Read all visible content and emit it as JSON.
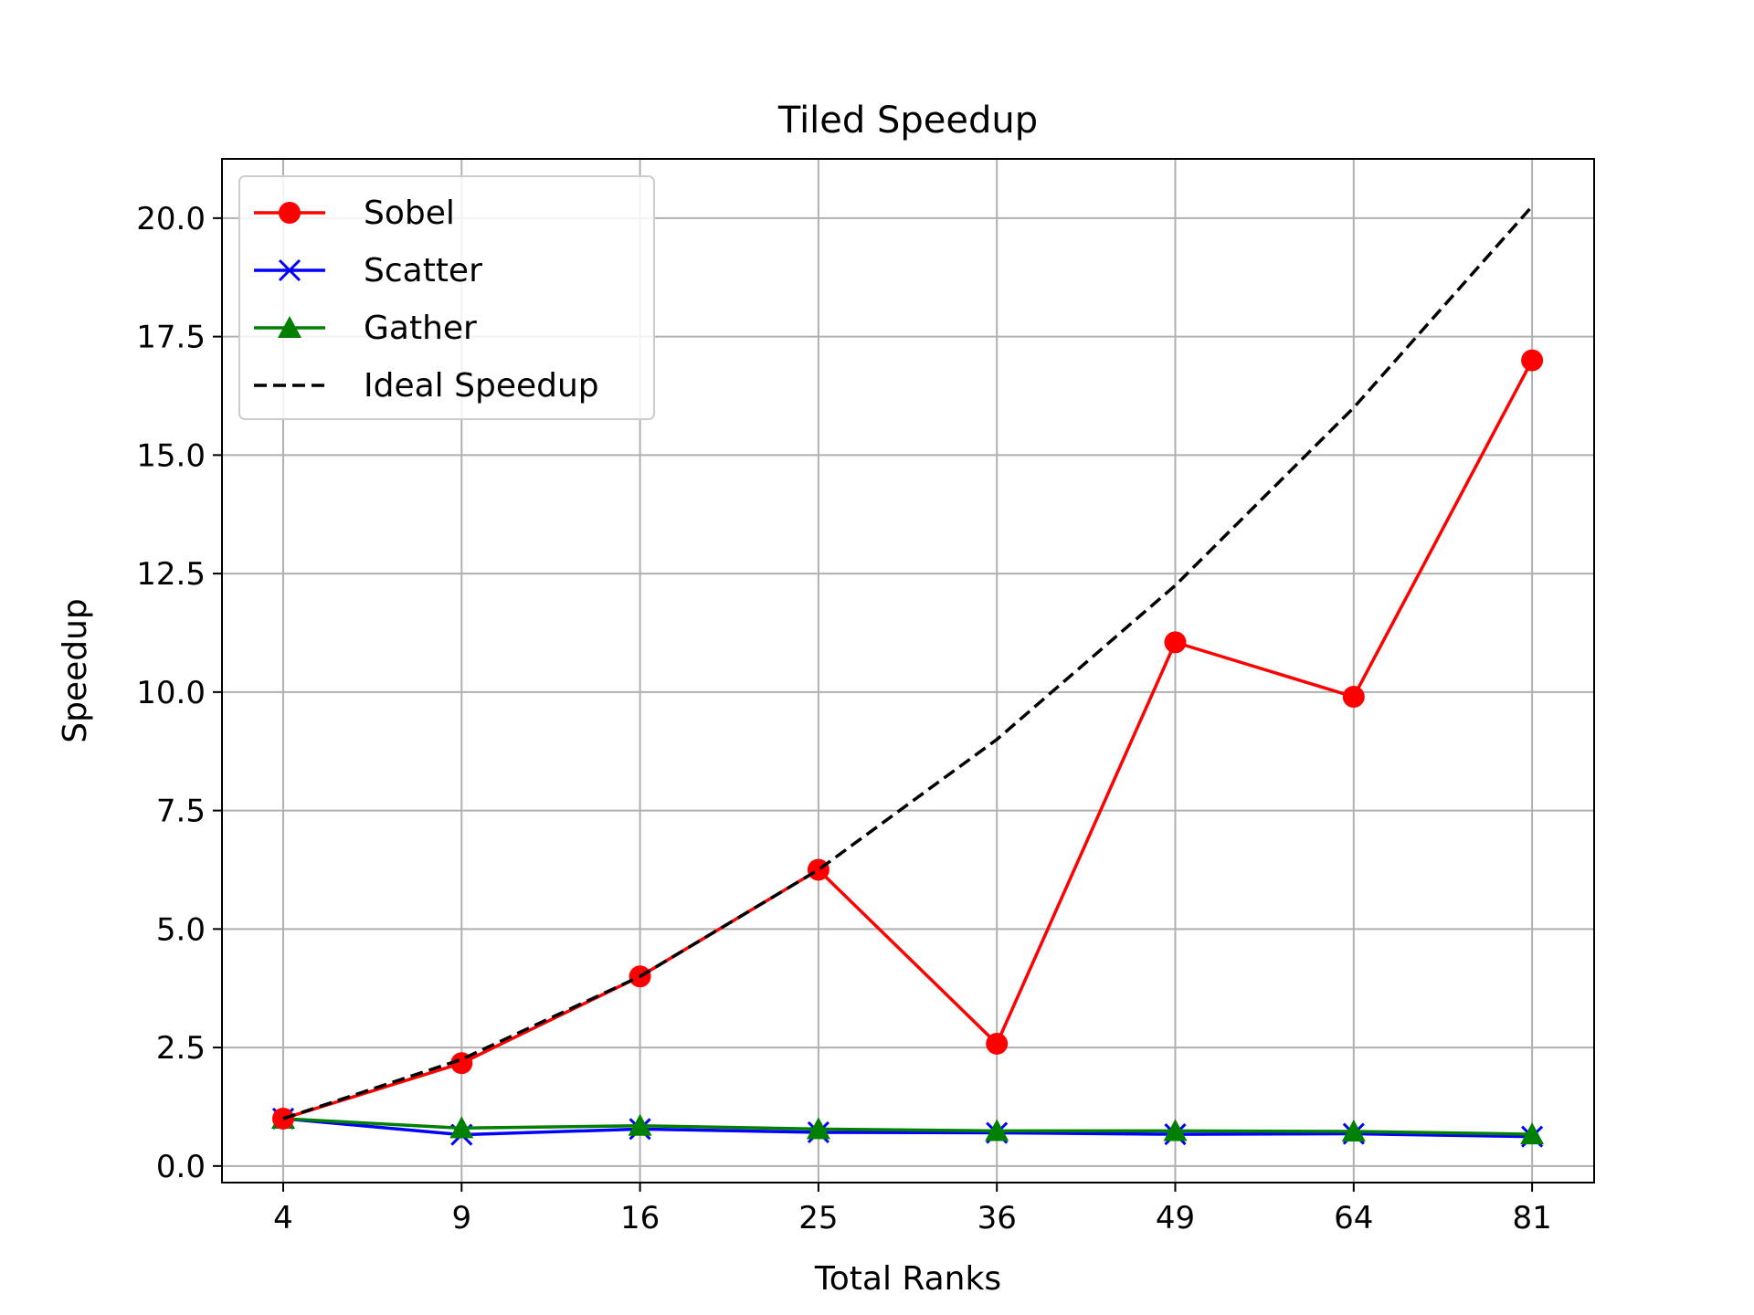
{
  "chart_data": {
    "type": "line",
    "title": "Tiled Speedup",
    "xlabel": "Total Ranks",
    "ylabel": "Speedup",
    "categories": [
      "4",
      "9",
      "16",
      "25",
      "36",
      "49",
      "64",
      "81"
    ],
    "ylim": [
      -0.35,
      21.25
    ],
    "yticks": [
      "0.0",
      "2.5",
      "5.0",
      "7.5",
      "10.0",
      "12.5",
      "15.0",
      "17.5",
      "20.0"
    ],
    "ytick_values": [
      0,
      2.5,
      5,
      7.5,
      10,
      12.5,
      15,
      17.5,
      20
    ],
    "grid": true,
    "legend_position": "upper-left",
    "series": [
      {
        "name": "Sobel",
        "color": "#ff0000",
        "marker": "circle",
        "dash": "solid",
        "values": [
          1.0,
          2.17,
          4.0,
          6.25,
          2.58,
          11.05,
          9.9,
          17.0
        ]
      },
      {
        "name": "Scatter",
        "color": "#0000ff",
        "marker": "x",
        "dash": "solid",
        "values": [
          1.0,
          0.66,
          0.78,
          0.71,
          0.7,
          0.67,
          0.68,
          0.62
        ]
      },
      {
        "name": "Gather",
        "color": "#008000",
        "marker": "triangle",
        "dash": "solid",
        "values": [
          1.0,
          0.8,
          0.85,
          0.78,
          0.74,
          0.74,
          0.73,
          0.67
        ]
      },
      {
        "name": "Ideal Speedup",
        "color": "#000000",
        "marker": "none",
        "dash": "dashed",
        "values": [
          1.0,
          2.25,
          4.0,
          6.25,
          9.0,
          12.25,
          16.0,
          20.25
        ]
      }
    ]
  }
}
